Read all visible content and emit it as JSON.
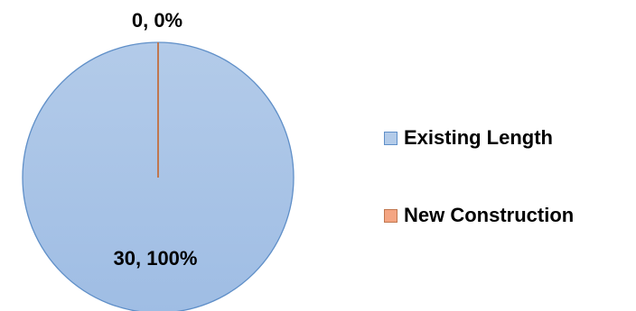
{
  "chart_data": {
    "type": "pie",
    "title": "",
    "categories": [
      "Existing Length",
      "New Construction"
    ],
    "values": [
      30,
      0
    ],
    "percentages": [
      "100%",
      "0%"
    ],
    "data_labels": [
      "30, 100%",
      "0, 0%"
    ],
    "legend": {
      "entries": [
        "Existing Length",
        "New Construction"
      ],
      "placement": "right"
    },
    "colors": {
      "fill": [
        "#b3cbe9",
        "#f4a582"
      ],
      "stroke": [
        "#5f8fc8",
        "#c0774f"
      ],
      "gradient_bottom": "#9fbde4"
    }
  }
}
